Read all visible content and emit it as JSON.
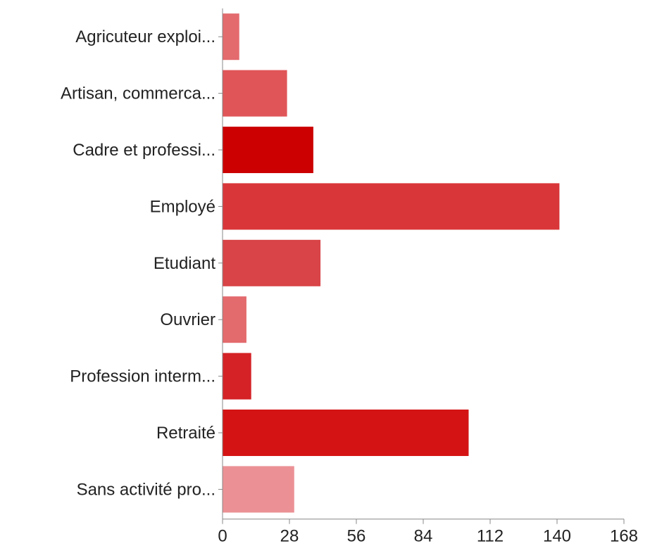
{
  "chart_data": {
    "type": "bar",
    "orientation": "horizontal",
    "title": "",
    "xlabel": "",
    "ylabel": "",
    "categories": [
      "Agricuteur exploi...",
      "Artisan, commerca...",
      "Cadre et professi...",
      "Employé",
      "Etudiant",
      "Ouvrier",
      "Profession interm...",
      "Retraité",
      "Sans activité pro..."
    ],
    "values": [
      7,
      27,
      38,
      141,
      41,
      10,
      12,
      103,
      30
    ],
    "colors": [
      "#e36a6d",
      "#e05558",
      "#cc0000",
      "#d93639",
      "#d84447",
      "#e36a6d",
      "#d42226",
      "#d41414",
      "#eb9195"
    ],
    "xlim": [
      0,
      168
    ],
    "xticks": [
      "0",
      "28",
      "56",
      "84",
      "112",
      "140",
      "168"
    ],
    "grid": false,
    "legend": "none"
  }
}
